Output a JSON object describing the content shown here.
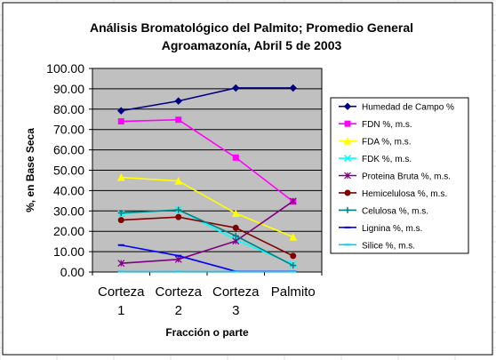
{
  "chart_data": {
    "type": "line",
    "title_line1": "Análisis Bromatológico del Palmito; Promedio General",
    "title_line2": "Agroamazonía, Abril 5 de 2003",
    "xlabel": "Fracción o parte",
    "ylabel": "%, en Base Seca",
    "categories": [
      [
        "Corteza",
        "1"
      ],
      [
        "Corteza",
        "2"
      ],
      [
        "Corteza",
        "3"
      ],
      [
        "Palmito"
      ]
    ],
    "ylim": [
      0,
      100
    ],
    "ytick_labels": [
      "0.00",
      "10.00",
      "20.00",
      "30.00",
      "40.00",
      "50.00",
      "60.00",
      "70.00",
      "80.00",
      "90.00",
      "100.00"
    ],
    "grid": true,
    "plot_background": "#c0c0c0",
    "legend_position": "right",
    "series": [
      {
        "name": "Humedad de Campo %",
        "color": "#000080",
        "marker": "diamond",
        "values": [
          79.2,
          84.0,
          90.4,
          90.4
        ]
      },
      {
        "name": "FDN %, m.s.",
        "color": "#ff00ff",
        "marker": "square",
        "values": [
          74.0,
          74.8,
          56.2,
          34.6
        ]
      },
      {
        "name": "FDA %, m.s.",
        "color": "#ffff00",
        "marker": "triangle",
        "values": [
          46.5,
          44.7,
          28.8,
          17.2
        ]
      },
      {
        "name": "FDK %, m.s.",
        "color": "#00ffff",
        "marker": "x",
        "values": [
          28.6,
          30.7,
          15.8,
          3.8
        ]
      },
      {
        "name": "Proteina Bruta %, m.s.",
        "color": "#800080",
        "marker": "star",
        "values": [
          4.3,
          6.2,
          15.2,
          34.8
        ]
      },
      {
        "name": "Hemicelulosa %, m.s.",
        "color": "#800000",
        "marker": "circle",
        "values": [
          25.5,
          27.0,
          21.7,
          7.9
        ]
      },
      {
        "name": "Celulosa %, m.s.",
        "color": "#008080",
        "marker": "plus",
        "values": [
          29.0,
          30.5,
          17.8,
          3.2
        ]
      },
      {
        "name": "Lignina %, m.s.",
        "color": "#0000ff",
        "marker": "dash",
        "values": [
          13.2,
          8.0,
          0.3,
          0.3
        ]
      },
      {
        "name": "Silice %, m.s.",
        "color": "#00ccff",
        "marker": "dash",
        "values": [
          0.2,
          0.2,
          0.2,
          0.2
        ]
      }
    ]
  }
}
